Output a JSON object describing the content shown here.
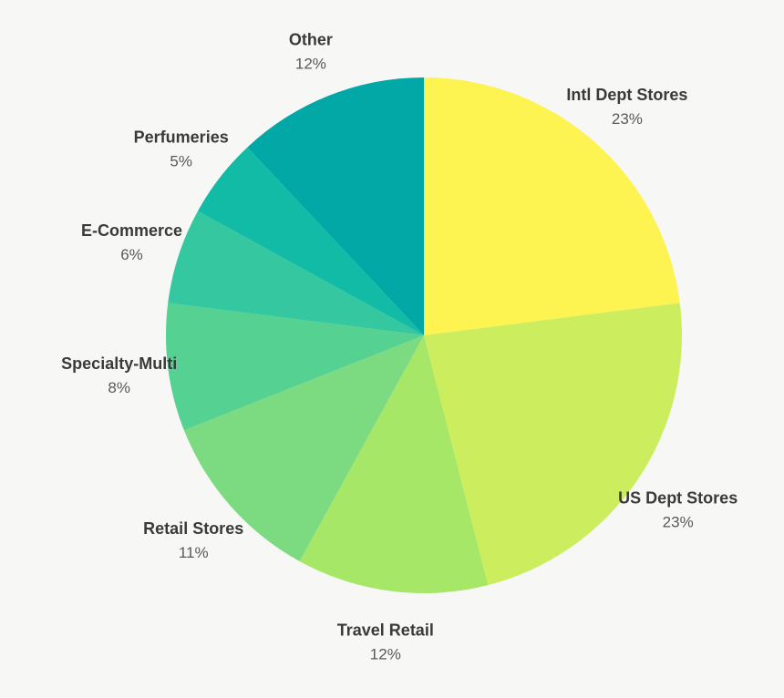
{
  "page": {
    "background_color": "#f7f7f6"
  },
  "chart_data": {
    "type": "pie",
    "title": "",
    "legend": "none",
    "start_angle_deg": 0,
    "direction": "clockwise",
    "total": 100,
    "label_name_color": "#3a3a3a",
    "label_value_color": "#595959",
    "slices": [
      {
        "label": "Intl Dept Stores",
        "value": 23,
        "display": "23%",
        "color": "#fdf351"
      },
      {
        "label": "US Dept Stores",
        "value": 23,
        "display": "23%",
        "color": "#ccee5e"
      },
      {
        "label": "Travel Retail",
        "value": 12,
        "display": "12%",
        "color": "#a6e768"
      },
      {
        "label": "Retail Stores",
        "value": 11,
        "display": "11%",
        "color": "#7cdb80"
      },
      {
        "label": "Specialty-Multi",
        "value": 8,
        "display": "8%",
        "color": "#55d192"
      },
      {
        "label": "E-Commerce",
        "value": 6,
        "display": "6%",
        "color": "#34c7a0"
      },
      {
        "label": "Perfumeries",
        "value": 5,
        "display": "5%",
        "color": "#12bba5"
      },
      {
        "label": "Other",
        "value": 12,
        "display": "12%",
        "color": "#01a8a6"
      }
    ]
  }
}
